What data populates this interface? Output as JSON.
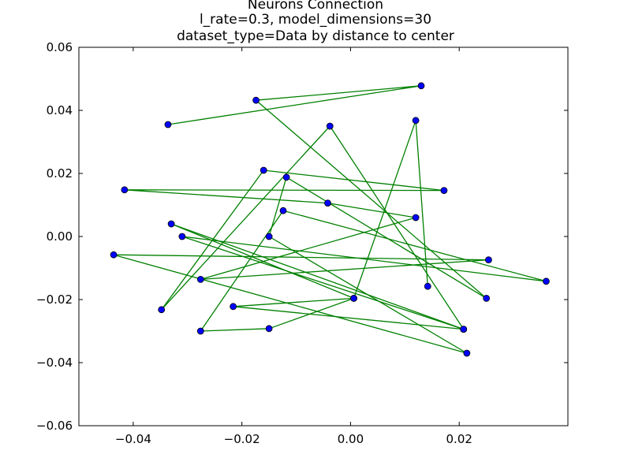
{
  "chart_data": {
    "type": "line",
    "title_lines": [
      "Neurons Connection",
      "l_rate=0.3, model_dimensions=30",
      "dataset_type=Data by distance to center"
    ],
    "xlabel": "",
    "ylabel": "",
    "xlim": [
      -0.05,
      0.04
    ],
    "ylim": [
      -0.06,
      0.06
    ],
    "x_ticks": [
      -0.04,
      -0.02,
      0.0,
      0.02
    ],
    "x_tick_labels": [
      "−0.04",
      "−0.02",
      "0.00",
      "0.02"
    ],
    "y_ticks": [
      0.06,
      0.04,
      0.02,
      0.0,
      -0.02,
      -0.04,
      -0.06
    ],
    "y_tick_labels": [
      "0.06",
      "0.04",
      "0.02",
      "0.00",
      "−0.02",
      "−0.04",
      "−0.06"
    ],
    "grid": false,
    "line_color": "#008000",
    "marker_color": "#0000ff",
    "series": [
      {
        "x": [
          -0.0336,
          0.013,
          -0.0174,
          0.025,
          -0.0118,
          -0.015,
          0.0214,
          -0.0436,
          0.0254,
          -0.0276,
          0.012,
          -0.0042,
          -0.0416,
          0.0172,
          -0.016,
          -0.0348,
          -0.0038,
          0.0208,
          -0.031,
          0.036,
          -0.0124,
          -0.0276,
          -0.015,
          0.0006,
          -0.0216,
          0.0208,
          -0.033,
          0.0006,
          0.012,
          0.0142
        ],
        "y": [
          0.0355,
          0.0478,
          0.0432,
          -0.0196,
          0.0188,
          0.0,
          -0.037,
          -0.0058,
          -0.0074,
          -0.0136,
          0.006,
          0.0106,
          0.0148,
          0.0146,
          0.021,
          -0.0232,
          0.035,
          -0.0294,
          0.0,
          -0.0142,
          0.0082,
          -0.03,
          -0.0292,
          -0.0196,
          -0.0222,
          -0.0294,
          0.004,
          -0.0196,
          0.0368,
          -0.0158
        ]
      }
    ]
  }
}
